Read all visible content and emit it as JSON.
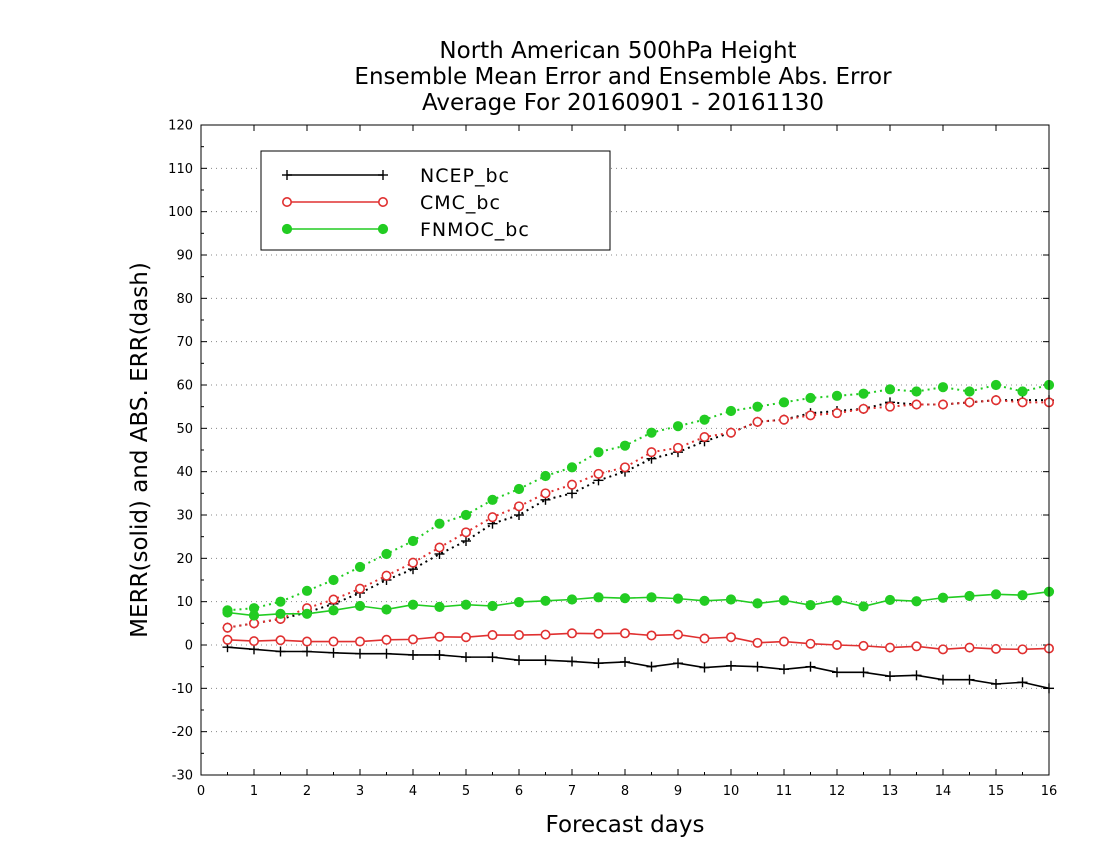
{
  "chart_data": {
    "type": "line",
    "title": [
      "North American 500hPa Height",
      "Ensemble Mean Error and Ensemble Abs. Error",
      "Average For 20160901 - 20161130"
    ],
    "xlabel": "Forecast days",
    "ylabel": "MERR(solid) and ABS. ERR(dash)",
    "xlim": [
      0,
      16
    ],
    "ylim": [
      -30,
      120
    ],
    "xticks": [
      0,
      1,
      2,
      3,
      4,
      5,
      6,
      7,
      8,
      9,
      10,
      11,
      12,
      13,
      14,
      15,
      16
    ],
    "yticks": [
      -30,
      -20,
      -10,
      0,
      10,
      20,
      30,
      40,
      50,
      60,
      70,
      80,
      90,
      100,
      110,
      120
    ],
    "grid": "horizontal-dotted",
    "legend_position": "top-left",
    "x": [
      0.5,
      1,
      1.5,
      2,
      2.5,
      3,
      3.5,
      4,
      4.5,
      5,
      5.5,
      6,
      6.5,
      7,
      7.5,
      8,
      8.5,
      9,
      9.5,
      10,
      10.5,
      11,
      11.5,
      12,
      12.5,
      13,
      13.5,
      14,
      14.5,
      15,
      15.5,
      16
    ],
    "series": [
      {
        "name": "NCEP_bc",
        "color": "#000000",
        "marker": "plus",
        "merr": [
          -0.5,
          -1,
          -1.5,
          -1.5,
          -1.8,
          -2,
          -2,
          -2.3,
          -2.3,
          -2.8,
          -2.8,
          -3.5,
          -3.5,
          -3.8,
          -4.2,
          -3.9,
          -5,
          -4.2,
          -5.2,
          -4.8,
          -5,
          -5.6,
          -5,
          -6.3,
          -6.3,
          -7.2,
          -7,
          -8,
          -8,
          -9,
          -8.6,
          -10
        ],
        "abs_err": [
          4,
          5,
          6,
          7.5,
          9.5,
          12,
          15,
          17.5,
          21,
          24,
          28,
          30,
          33.5,
          35,
          38,
          40,
          43,
          44.5,
          47,
          49,
          51.5,
          52,
          53.5,
          54,
          54.5,
          56,
          55.5,
          55.5,
          56,
          56.5,
          56.5,
          56.5
        ]
      },
      {
        "name": "CMC_bc",
        "color": "#e03030",
        "marker": "open-circle",
        "merr": [
          1.2,
          0.9,
          1.1,
          0.8,
          0.8,
          0.8,
          1.2,
          1.3,
          1.9,
          1.8,
          2.3,
          2.3,
          2.4,
          2.7,
          2.6,
          2.7,
          2.2,
          2.4,
          1.5,
          1.8,
          0.5,
          0.8,
          0.3,
          0,
          -0.2,
          -0.6,
          -0.3,
          -1,
          -0.6,
          -0.9,
          -1,
          -0.8
        ],
        "abs_err": [
          4,
          5,
          6,
          8.5,
          10.5,
          13,
          16,
          19,
          22.5,
          26,
          29.5,
          32,
          35,
          37,
          39.5,
          41,
          44.5,
          45.5,
          48,
          49,
          51.5,
          52,
          53,
          53.5,
          54.5,
          55,
          55.5,
          55.5,
          56,
          56.5,
          56,
          56
        ]
      },
      {
        "name": "FNMOC_bc",
        "color": "#22cc22",
        "marker": "filled-circle",
        "merr": [
          7.5,
          6.8,
          7.2,
          7.2,
          8,
          9,
          8.2,
          9.3,
          8.8,
          9.3,
          9,
          9.9,
          10.2,
          10.5,
          11,
          10.8,
          11,
          10.7,
          10.2,
          10.5,
          9.6,
          10.3,
          9.2,
          10.3,
          8.9,
          10.4,
          10.1,
          10.9,
          11.3,
          11.7,
          11.5,
          12.3
        ],
        "abs_err": [
          8,
          8.5,
          10,
          12.5,
          15,
          18,
          21,
          24,
          28,
          30,
          33.5,
          36,
          39,
          41,
          44.5,
          46,
          49,
          50.5,
          52,
          54,
          55,
          56,
          57,
          57.5,
          58,
          59,
          58.5,
          59.5,
          58.5,
          60,
          58.5,
          60
        ]
      }
    ]
  }
}
